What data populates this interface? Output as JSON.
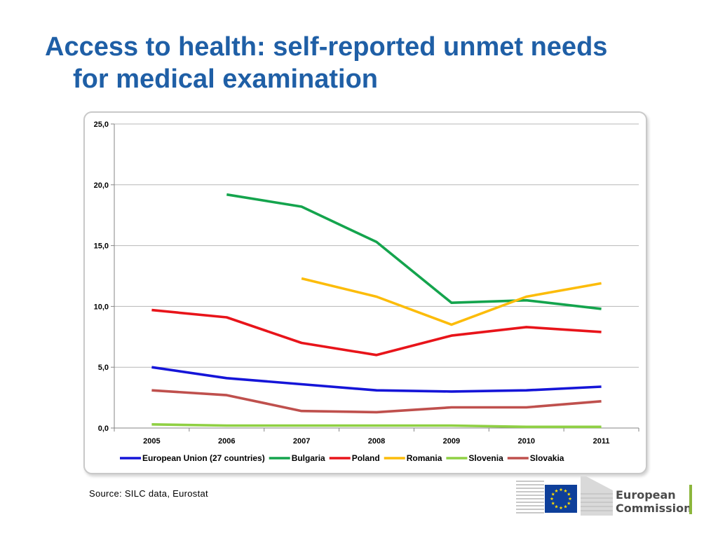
{
  "slide": {
    "title_line1": "Access to health: self-reported unmet needs",
    "title_line2": "for medical examination",
    "source": "Source: SILC data, Eurostat"
  },
  "logo": {
    "line1": "European",
    "line2": "Commission",
    "flag_color": "#0e3f9a",
    "star_color": "#ffdd00",
    "accent_color": "#8cb63c"
  },
  "chart_data": {
    "type": "line",
    "title": "",
    "xlabel": "",
    "ylabel": "",
    "categories": [
      "2005",
      "2006",
      "2007",
      "2008",
      "2009",
      "2010",
      "2011"
    ],
    "ylim": [
      0,
      25
    ],
    "ytick_labels": [
      "0,0",
      "5,0",
      "10,0",
      "15,0",
      "20,0",
      "25,0"
    ],
    "grid": "horizontal",
    "legend_position": "bottom",
    "series": [
      {
        "name": "European Union (27 countries)",
        "color": "#1515d8",
        "values": [
          5.0,
          4.1,
          3.6,
          3.1,
          3.0,
          3.1,
          3.4
        ]
      },
      {
        "name": "Bulgaria",
        "color": "#14a44d",
        "values": [
          null,
          19.2,
          18.2,
          15.3,
          10.3,
          10.5,
          9.8
        ]
      },
      {
        "name": "Poland",
        "color": "#e8141a",
        "values": [
          9.7,
          9.1,
          7.0,
          6.0,
          7.6,
          8.3,
          7.9
        ]
      },
      {
        "name": "Romania",
        "color": "#fcbc0a",
        "values": [
          null,
          null,
          12.3,
          10.8,
          8.5,
          10.8,
          11.9
        ]
      },
      {
        "name": "Slovenia",
        "color": "#8fd043",
        "values": [
          0.3,
          0.2,
          0.2,
          0.2,
          0.2,
          0.1,
          0.1
        ]
      },
      {
        "name": "Slovakia",
        "color": "#bf504d",
        "values": [
          3.1,
          2.7,
          1.4,
          1.3,
          1.7,
          1.7,
          2.2
        ]
      }
    ]
  }
}
